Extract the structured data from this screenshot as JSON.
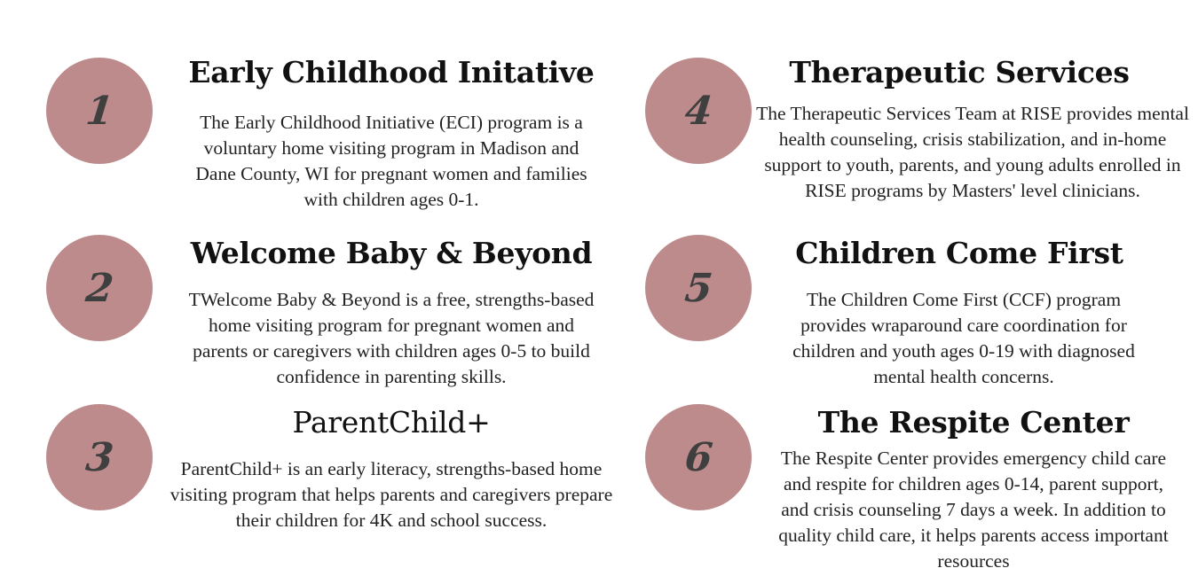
{
  "accent_color": "#bd8b8c",
  "programs": [
    {
      "number": "1",
      "title": "Early Childhood Initative",
      "description": "The Early Childhood Initiative (ECI) program is a voluntary home visiting program in Madison and Dane County, WI for pregnant women and families with children ages 0-1."
    },
    {
      "number": "2",
      "title": "Welcome Baby & Beyond",
      "description": "TWelcome Baby & Beyond is a free, strengths-based home visiting program for pregnant women and parents or caregivers with children ages 0-5 to build confidence in parenting skills."
    },
    {
      "number": "3",
      "title": "ParentChild+",
      "description": "ParentChild+ is an early literacy, strengths-based home visiting program that helps parents and caregivers prepare their children for 4K and school success."
    },
    {
      "number": "4",
      "title": "Therapeutic Services",
      "description": "The Therapeutic Services Team at RISE provides mental health counseling, crisis stabilization, and in-home support to youth, parents, and young adults enrolled in RISE programs by Masters' level clinicians."
    },
    {
      "number": "5",
      "title": "Children Come First",
      "description": "The Children Come First (CCF) program provides wraparound care coordination for children and youth ages 0-19 with diagnosed mental health concerns."
    },
    {
      "number": "6",
      "title": "The Respite Center",
      "description": "The Respite Center provides emergency child care and respite for children ages 0-14, parent support, and crisis counseling 7 days a week. In addition to quality child care, it helps parents access important resources"
    }
  ]
}
